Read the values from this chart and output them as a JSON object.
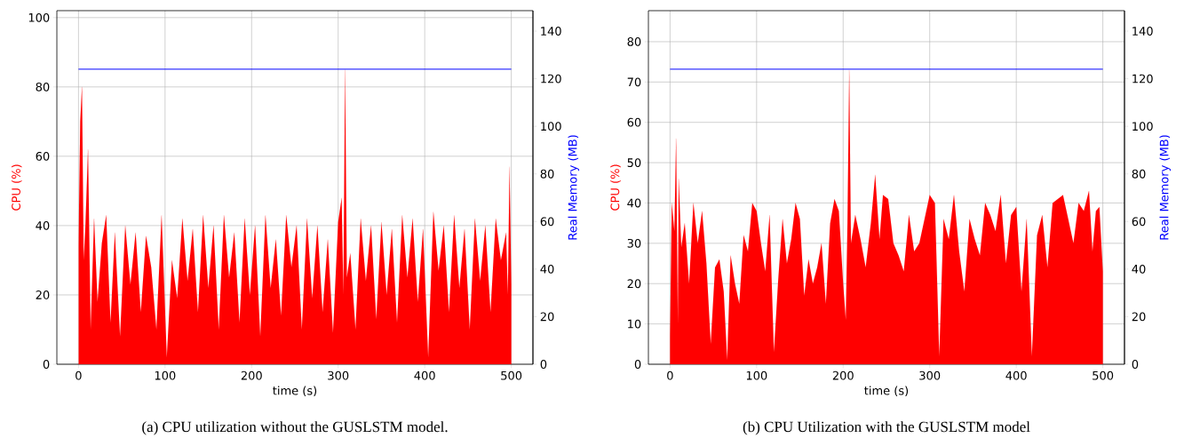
{
  "chart_data": [
    {
      "type": "area",
      "title": "(a) CPU utilization without the GUSLSTM model.",
      "xlabel": "time (s)",
      "ylabel": "CPU (%)",
      "y2label": "Real Memory (MB)",
      "xlim": [
        -25,
        525
      ],
      "xticks": [
        0,
        100,
        200,
        300,
        400,
        500
      ],
      "ylim": [
        0,
        102
      ],
      "yticks": [
        0,
        20,
        40,
        60,
        80,
        100
      ],
      "y2lim": [
        0,
        148.6
      ],
      "y2ticks": [
        0,
        20,
        40,
        60,
        80,
        100,
        120,
        140
      ],
      "grid": true,
      "series": [
        {
          "color": "#ff0000",
          "x": [
            0,
            2,
            4,
            6,
            8,
            11,
            14,
            18,
            22,
            27,
            32,
            37,
            42,
            48,
            54,
            60,
            66,
            72,
            78,
            84,
            90,
            96,
            102,
            108,
            114,
            120,
            126,
            132,
            138,
            144,
            150,
            156,
            162,
            168,
            174,
            180,
            186,
            192,
            198,
            204,
            210,
            216,
            222,
            228,
            234,
            240,
            246,
            252,
            258,
            264,
            270,
            276,
            282,
            288,
            294,
            300,
            304,
            306,
            308,
            310,
            314,
            320,
            326,
            332,
            338,
            344,
            350,
            356,
            362,
            368,
            374,
            380,
            386,
            392,
            398,
            404,
            410,
            416,
            422,
            428,
            434,
            440,
            446,
            452,
            458,
            464,
            470,
            476,
            482,
            488,
            494,
            496,
            498,
            500
          ],
          "values": [
            34,
            70,
            80,
            30,
            40,
            62,
            10,
            42,
            18,
            35,
            43,
            12,
            38,
            8,
            40,
            23,
            38,
            15,
            37,
            28,
            10,
            43,
            2,
            30,
            19,
            42,
            24,
            39,
            15,
            43,
            22,
            40,
            10,
            43,
            25,
            38,
            12,
            42,
            20,
            40,
            8,
            43,
            22,
            36,
            14,
            43,
            28,
            40,
            10,
            42,
            19,
            40,
            15,
            36,
            9,
            41,
            48,
            20,
            85,
            25,
            32,
            10,
            42,
            24,
            40,
            13,
            41,
            20,
            39,
            12,
            43,
            25,
            42,
            18,
            39,
            2,
            44,
            27,
            40,
            15,
            43,
            22,
            39,
            10,
            42,
            24,
            40,
            15,
            42,
            30,
            38,
            20,
            57,
            23
          ]
        },
        {
          "type": "line",
          "axis": "y2",
          "color": "#0000ff",
          "x": [
            0,
            500
          ],
          "values": [
            124,
            124
          ]
        }
      ]
    },
    {
      "type": "area",
      "title": "(b) CPU Utilization with the GUSLSTM model",
      "xlabel": "time (s)",
      "ylabel": "CPU (%)",
      "y2label": "Real Memory (MB)",
      "xlim": [
        -25,
        525
      ],
      "xticks": [
        0,
        100,
        200,
        300,
        400,
        500
      ],
      "ylim": [
        0,
        87.7
      ],
      "yticks": [
        0,
        10,
        20,
        30,
        40,
        50,
        60,
        70,
        80
      ],
      "y2lim": [
        0,
        148.6
      ],
      "y2ticks": [
        0,
        20,
        40,
        60,
        80,
        100,
        120,
        140
      ],
      "grid": true,
      "series": [
        {
          "color": "#ff0000",
          "x": [
            0,
            2,
            5,
            7,
            9,
            10,
            13,
            17,
            22,
            27,
            32,
            37,
            42,
            47,
            52,
            57,
            62,
            66,
            70,
            75,
            80,
            85,
            90,
            95,
            100,
            105,
            110,
            115,
            120,
            125,
            130,
            135,
            140,
            145,
            150,
            155,
            160,
            165,
            170,
            175,
            180,
            185,
            190,
            195,
            200,
            203,
            205,
            207,
            209,
            214,
            220,
            226,
            232,
            237,
            242,
            246,
            252,
            258,
            264,
            270,
            276,
            282,
            288,
            294,
            300,
            306,
            311,
            316,
            322,
            328,
            334,
            340,
            346,
            352,
            358,
            364,
            370,
            376,
            382,
            388,
            394,
            400,
            406,
            412,
            418,
            424,
            430,
            436,
            442,
            448,
            454,
            460,
            466,
            472,
            478,
            484,
            488,
            492,
            496,
            500
          ],
          "values": [
            7,
            40,
            33,
            56,
            10,
            46,
            29,
            35,
            20,
            40,
            30,
            38,
            25,
            5,
            24,
            26,
            18,
            1,
            27,
            20,
            15,
            32,
            28,
            40,
            38,
            30,
            23,
            37,
            3,
            21,
            36,
            25,
            31,
            40,
            36,
            17,
            26,
            20,
            24,
            30,
            15,
            35,
            41,
            38,
            20,
            11,
            35,
            73,
            30,
            37,
            31,
            24,
            35,
            47,
            31,
            42,
            41,
            30,
            27,
            23,
            37,
            28,
            30,
            36,
            42,
            40,
            2,
            36,
            31,
            42,
            28,
            18,
            36,
            31,
            27,
            40,
            37,
            33,
            42,
            25,
            37,
            39,
            18,
            36,
            2,
            32,
            37,
            24,
            40,
            41,
            42,
            36,
            30,
            40,
            38,
            43,
            28,
            38,
            39,
            23
          ]
        },
        {
          "type": "line",
          "axis": "y2",
          "color": "#0000ff",
          "x": [
            0,
            500
          ],
          "values": [
            124,
            124
          ]
        }
      ]
    }
  ]
}
